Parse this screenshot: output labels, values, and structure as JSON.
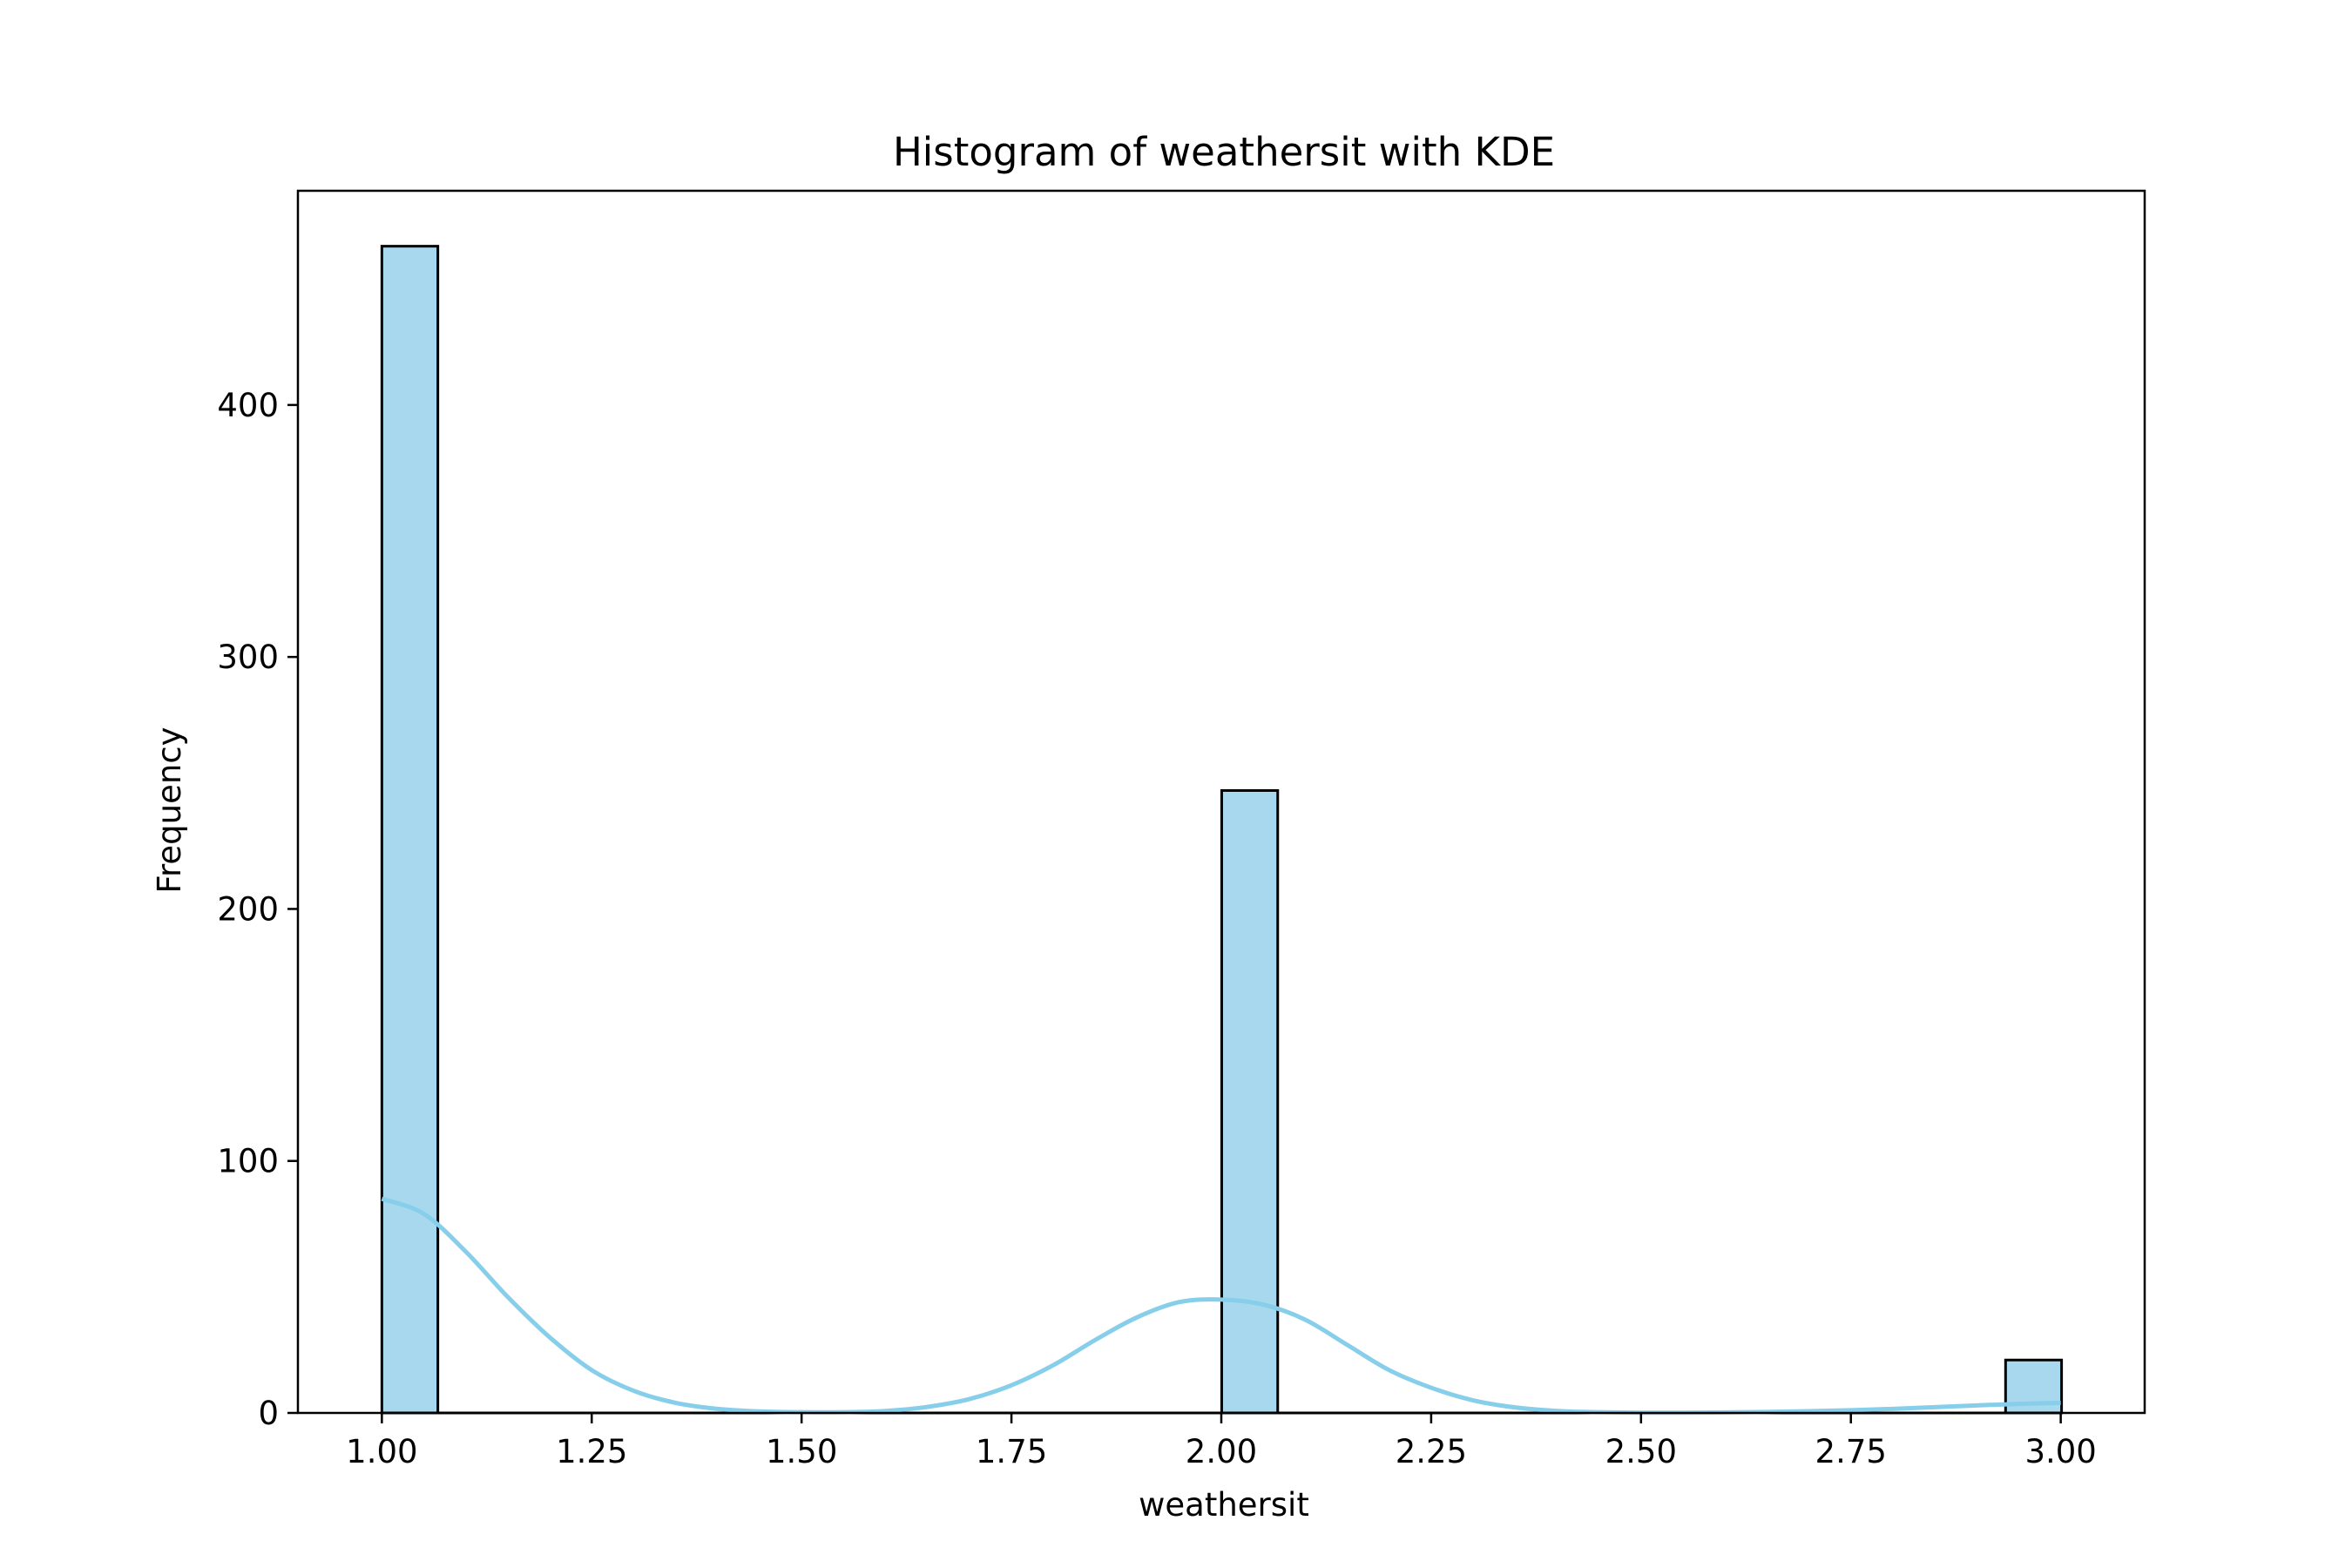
{
  "chart_data": {
    "type": "bar",
    "title": "Histogram of weathersit with KDE",
    "xlabel": "weathersit",
    "ylabel": "Frequency",
    "xlim": [
      0.9,
      3.1
    ],
    "ylim": [
      0,
      485
    ],
    "x_ticks": [
      1.0,
      1.25,
      1.5,
      1.75,
      2.0,
      2.25,
      2.5,
      2.75,
      3.0
    ],
    "x_tick_labels": [
      "1.00",
      "1.25",
      "1.50",
      "1.75",
      "2.00",
      "2.25",
      "2.50",
      "2.75",
      "3.00"
    ],
    "y_ticks": [
      0,
      100,
      200,
      300,
      400
    ],
    "y_tick_labels": [
      "0",
      "100",
      "200",
      "300",
      "400"
    ],
    "grid": false,
    "bins": {
      "start": 1.0,
      "width": 0.0667,
      "counts": [
        463,
        0,
        0,
        0,
        0,
        0,
        0,
        0,
        0,
        0,
        0,
        0,
        0,
        0,
        0,
        247,
        0,
        0,
        0,
        0,
        0,
        0,
        0,
        0,
        0,
        0,
        0,
        0,
        0,
        21
      ]
    },
    "kde": {
      "x": [
        1.0,
        1.05,
        1.1,
        1.15,
        1.2,
        1.25,
        1.3,
        1.35,
        1.4,
        1.45,
        1.5,
        1.55,
        1.6,
        1.65,
        1.7,
        1.75,
        1.8,
        1.85,
        1.9,
        1.95,
        2.0,
        2.05,
        2.1,
        2.15,
        2.2,
        2.25,
        2.3,
        2.35,
        2.4,
        2.45,
        2.5,
        2.55,
        2.6,
        2.65,
        2.7,
        2.75,
        2.8,
        2.85,
        2.9,
        2.95,
        3.0
      ],
      "y": [
        85,
        79,
        64,
        46,
        30,
        17,
        8.8,
        4,
        1.6,
        0.6,
        0.3,
        0.3,
        0.8,
        2.4,
        5.5,
        11,
        19,
        29,
        38,
        44,
        45,
        43,
        37,
        27,
        17,
        10,
        5,
        2.2,
        0.8,
        0.3,
        0.1,
        0.1,
        0.2,
        0.4,
        0.7,
        1.1,
        1.6,
        2.3,
        3,
        3.6,
        4
      ]
    },
    "colors": {
      "bar_fill": "#a8d8ee",
      "bar_edge": "#000000",
      "kde_line": "#87ceeb"
    }
  }
}
